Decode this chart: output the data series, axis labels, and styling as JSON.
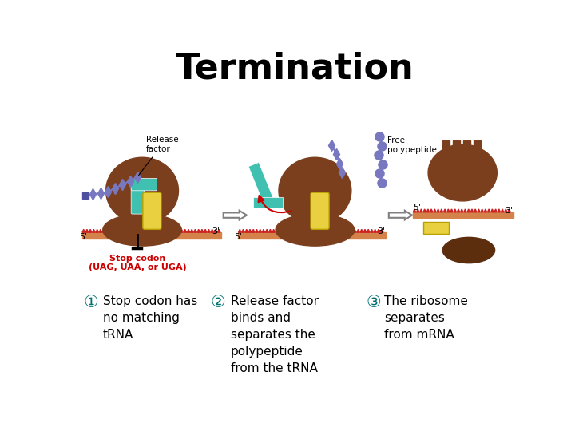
{
  "title": "Termination",
  "title_fontsize": 32,
  "title_fontweight": "bold",
  "bg_color": "#ffffff",
  "text1_num": "①",
  "text1": "Stop codon has\nno matching\ntRNA",
  "text2_num": "②",
  "text2": "Release factor\nbinds and\nseparates the\npolypeptide\nfrom the tRNA",
  "text3_num": "③",
  "text3": "The ribosome\nseparates\nfrom mRNA",
  "label_release": "Release\nfactor",
  "label_free": "Free\npolypeptide",
  "label_stop": "Stop codon\n(UAG, UAA, or UGA)",
  "stop_color": "#cc0000",
  "num_color": "#007070",
  "text_fontsize": 11,
  "num_fontsize": 15,
  "ribosome_color": "#7b3f1e",
  "ribosome_dark": "#5c2e0e",
  "mrna_red": "#cc2222",
  "mrna_tan": "#d4824a",
  "tRNA_color": "#40c0b0",
  "yellow_color": "#e8d040",
  "peptide_color": "#7878c0"
}
